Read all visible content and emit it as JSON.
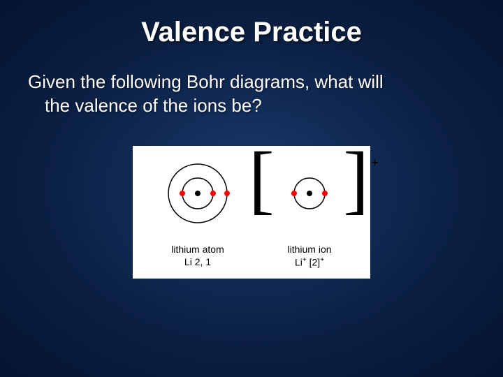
{
  "title": "Valence Practice",
  "question_line1": "Given the following Bohr diagrams, what will",
  "question_line2": "the valence of the ions be?",
  "diagram": {
    "background_color": "#ffffff",
    "electron_color": "#ff0000",
    "nucleus_color": "#000000",
    "shell_stroke": "#000000",
    "bracket_color": "#000000",
    "text_color": "#000000",
    "atom": {
      "name": "lithium atom",
      "symbol_line": "Li    2, 1",
      "outer_radius": 42,
      "inner_radius": 22,
      "nucleus_radius": 4,
      "electron_radius": 4,
      "electrons": [
        {
          "shell": "inner",
          "angle": 90
        },
        {
          "shell": "inner",
          "angle": 270
        },
        {
          "shell": "outer",
          "angle": 90
        }
      ]
    },
    "ion": {
      "name": "lithium ion",
      "symbol_line_html": "Li<sup>+</sup>   [2]<sup>+</sup>",
      "charge": "+",
      "inner_radius": 22,
      "nucleus_radius": 4,
      "electron_radius": 4,
      "electrons": [
        {
          "shell": "inner",
          "angle": 90
        },
        {
          "shell": "inner",
          "angle": 270
        }
      ]
    }
  },
  "slide": {
    "bg_gradient_inner": "#1a3a6e",
    "bg_gradient_mid": "#0a1f42",
    "bg_gradient_outer": "#051430",
    "title_color": "#ffffff",
    "title_fontsize": 40,
    "body_color": "#ffffff",
    "body_fontsize": 26
  }
}
